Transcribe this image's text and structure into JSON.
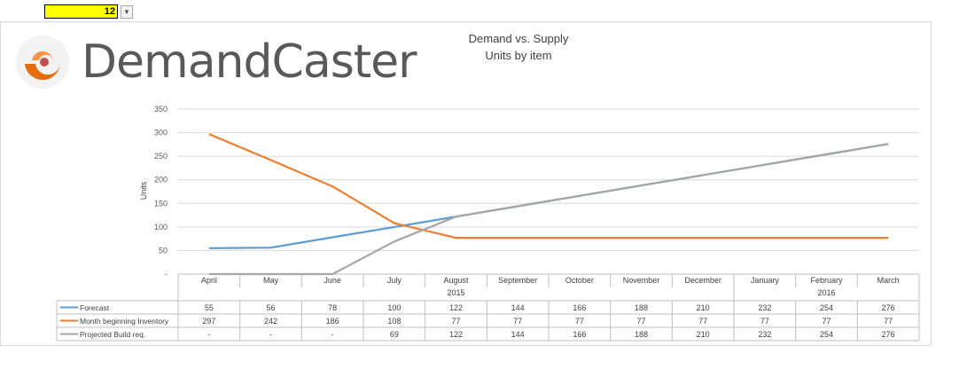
{
  "cell": {
    "value": "12"
  },
  "brand": {
    "name": "DemandCaster"
  },
  "chart_data": {
    "type": "line",
    "title": "Demand vs. Supply",
    "subtitle": "Units by item",
    "ylabel": "Units",
    "ylim": [
      0,
      350
    ],
    "yticks": [
      "-",
      "50",
      "100",
      "150",
      "200",
      "250",
      "300",
      "350"
    ],
    "categories": [
      "April",
      "May",
      "June",
      "July",
      "August",
      "September",
      "October",
      "November",
      "December",
      "January",
      "February",
      "March"
    ],
    "year_labels": [
      {
        "label": "2015",
        "span": [
          0,
          8
        ]
      },
      {
        "label": "2016",
        "span": [
          9,
          11
        ]
      }
    ],
    "series": [
      {
        "name": "Forecast",
        "color": "#5b9bd5",
        "values": [
          55,
          56,
          78,
          100,
          122,
          144,
          166,
          188,
          210,
          232,
          254,
          276
        ],
        "display": [
          "55",
          "56",
          "78",
          "100",
          "122",
          "144",
          "166",
          "188",
          "210",
          "232",
          "254",
          "276"
        ]
      },
      {
        "name": "Month beginning Inventory",
        "color": "#ed7d31",
        "values": [
          297,
          242,
          186,
          108,
          77,
          77,
          77,
          77,
          77,
          77,
          77,
          77
        ],
        "display": [
          "297",
          "242",
          "186",
          "108",
          "77",
          "77",
          "77",
          "77",
          "77",
          "77",
          "77",
          "77"
        ]
      },
      {
        "name": "Projected Build req.",
        "color": "#a5a5a5",
        "values": [
          0,
          0,
          0,
          69,
          122,
          144,
          166,
          188,
          210,
          232,
          254,
          276
        ],
        "display": [
          "-",
          "-",
          "-",
          "69",
          "122",
          "144",
          "166",
          "188",
          "210",
          "232",
          "254",
          "276"
        ]
      }
    ],
    "grid": true
  }
}
